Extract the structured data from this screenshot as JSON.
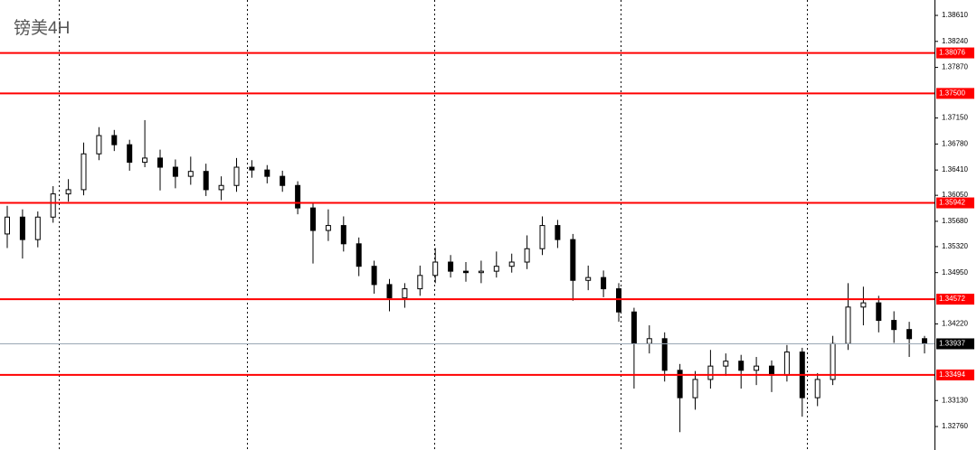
{
  "chart_data": {
    "type": "candlestick",
    "title": "镑美4H",
    "ylim": [
      1.32426,
      1.38829
    ],
    "yticks": [
      {
        "value": 1.3861,
        "label": "1.38610"
      },
      {
        "value": 1.3824,
        "label": "1.38240"
      },
      {
        "value": 1.3787,
        "label": "1.37870"
      },
      {
        "value": 1.3715,
        "label": "1.37150"
      },
      {
        "value": 1.3678,
        "label": "1.36780"
      },
      {
        "value": 1.3641,
        "label": "1.36410"
      },
      {
        "value": 1.3605,
        "label": "1.36050"
      },
      {
        "value": 1.3568,
        "label": "1.35680"
      },
      {
        "value": 1.3532,
        "label": "1.35320"
      },
      {
        "value": 1.3495,
        "label": "1.34950"
      },
      {
        "value": 1.3422,
        "label": "1.34220"
      },
      {
        "value": 1.3313,
        "label": "1.33130"
      },
      {
        "value": 1.3276,
        "label": "1.32760"
      }
    ],
    "levels": [
      {
        "value": 1.38076,
        "label": "1.38076"
      },
      {
        "value": 1.375,
        "label": "1.37500"
      },
      {
        "value": 1.35942,
        "label": "1.35942"
      },
      {
        "value": 1.34572,
        "label": "1.34572"
      },
      {
        "value": 1.33494,
        "label": "1.33494"
      }
    ],
    "current_price": {
      "value": 1.33937,
      "label": "1.33937"
    },
    "level_color": "#ff0000",
    "up_color": "#ffffff",
    "down_color": "#000000",
    "open": [
      1.355,
      1.3574,
      1.3542,
      1.3574,
      1.3607,
      1.3613,
      1.3664,
      1.369,
      1.3677,
      1.3652,
      1.3658,
      1.3645,
      1.3632,
      1.3639,
      1.3613,
      1.3619,
      1.3645,
      1.3641,
      1.3632,
      1.3619,
      1.3587,
      1.3555,
      1.3562,
      1.3536,
      1.3504,
      1.3478,
      1.3459,
      1.3472,
      1.3491,
      1.351,
      1.3497,
      1.3495,
      1.3497,
      1.3504,
      1.351,
      1.3529,
      1.3562,
      1.3542,
      1.3484,
      1.3488,
      1.3472,
      1.3439,
      1.3394,
      1.3401,
      1.3356,
      1.3317,
      1.3343,
      1.3362,
      1.3369,
      1.3356,
      1.3362,
      1.3349,
      1.3382,
      1.3317,
      1.3343,
      1.3394,
      1.3446,
      1.3452,
      1.3427,
      1.3414,
      1.3401
    ],
    "high": [
      1.359,
      1.3585,
      1.3582,
      1.3618,
      1.3628,
      1.368,
      1.3702,
      1.3698,
      1.3684,
      1.3712,
      1.367,
      1.3656,
      1.366,
      1.365,
      1.3632,
      1.3658,
      1.3655,
      1.3648,
      1.364,
      1.3625,
      1.3595,
      1.3585,
      1.3575,
      1.3545,
      1.3512,
      1.3486,
      1.348,
      1.3505,
      1.353,
      1.352,
      1.351,
      1.3512,
      1.3525,
      1.3522,
      1.3548,
      1.3575,
      1.357,
      1.355,
      1.3505,
      1.3498,
      1.348,
      1.3445,
      1.342,
      1.341,
      1.3365,
      1.3355,
      1.3385,
      1.338,
      1.3378,
      1.3375,
      1.337,
      1.3392,
      1.3388,
      1.3352,
      1.3405,
      1.348,
      1.3475,
      1.3462,
      1.344,
      1.3425,
      1.3405
    ],
    "low": [
      1.353,
      1.3515,
      1.3531,
      1.3566,
      1.3596,
      1.3605,
      1.3655,
      1.3668,
      1.364,
      1.3645,
      1.3612,
      1.3615,
      1.362,
      1.3604,
      1.3598,
      1.361,
      1.363,
      1.3622,
      1.361,
      1.3578,
      1.3508,
      1.354,
      1.3525,
      1.349,
      1.3465,
      1.344,
      1.3445,
      1.3462,
      1.348,
      1.3488,
      1.3482,
      1.348,
      1.3488,
      1.3495,
      1.35,
      1.352,
      1.353,
      1.3455,
      1.347,
      1.346,
      1.3425,
      1.333,
      1.338,
      1.334,
      1.3268,
      1.33,
      1.333,
      1.3348,
      1.333,
      1.3335,
      1.3325,
      1.334,
      1.329,
      1.3305,
      1.3335,
      1.3385,
      1.342,
      1.341,
      1.3395,
      1.3375,
      1.338
    ],
    "close": [
      1.3574,
      1.3542,
      1.3574,
      1.3607,
      1.3613,
      1.3664,
      1.369,
      1.3677,
      1.3652,
      1.3658,
      1.3645,
      1.3632,
      1.3639,
      1.3613,
      1.3619,
      1.3645,
      1.3641,
      1.3632,
      1.3619,
      1.3587,
      1.3555,
      1.3562,
      1.3536,
      1.3504,
      1.3478,
      1.3459,
      1.3472,
      1.3491,
      1.351,
      1.3497,
      1.3495,
      1.3497,
      1.3504,
      1.351,
      1.3529,
      1.3562,
      1.3542,
      1.3484,
      1.3488,
      1.3472,
      1.3439,
      1.3394,
      1.3401,
      1.3356,
      1.3317,
      1.3343,
      1.3362,
      1.3369,
      1.3356,
      1.3362,
      1.3349,
      1.3382,
      1.3317,
      1.3343,
      1.3394,
      1.3446,
      1.3452,
      1.3427,
      1.3414,
      1.3401,
      1.3394
    ]
  }
}
